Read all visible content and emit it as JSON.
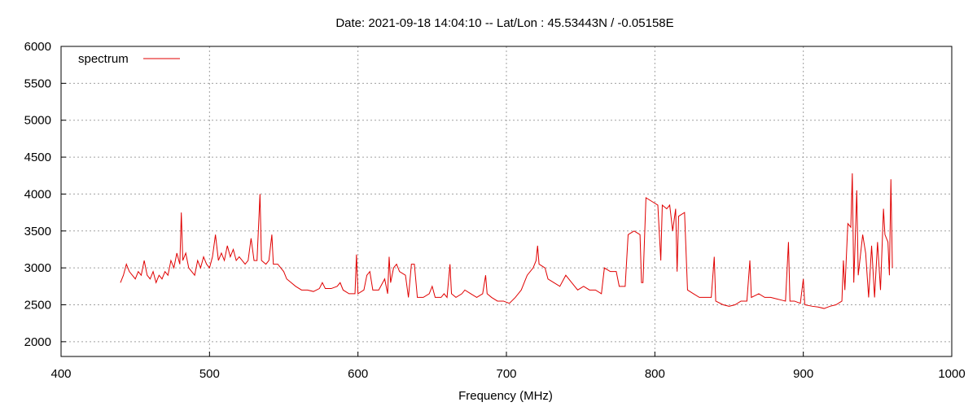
{
  "chart_data": {
    "type": "line",
    "title": "Date: 2021-09-18 14:04:10  --  Lat/Lon : 45.53443N / -0.05158E",
    "x_label": "Frequency (MHz)",
    "x": [
      440,
      442,
      444,
      446,
      448,
      450,
      452,
      454,
      456,
      458,
      460,
      462,
      464,
      466,
      468,
      470,
      472,
      474,
      476,
      478,
      480,
      481,
      482,
      484,
      486,
      488,
      490,
      492,
      494,
      496,
      498,
      500,
      502,
      504,
      506,
      508,
      510,
      512,
      514,
      516,
      518,
      520,
      522,
      524,
      526,
      528,
      530,
      532,
      534,
      535,
      538,
      540,
      542,
      543,
      546,
      548,
      550,
      552,
      555,
      558,
      562,
      566,
      570,
      574,
      576,
      578,
      582,
      586,
      588,
      590,
      594,
      598,
      599,
      600,
      604,
      606,
      608,
      610,
      614,
      618,
      620,
      621,
      622,
      624,
      626,
      628,
      632,
      634,
      636,
      638,
      640,
      644,
      648,
      650,
      652,
      656,
      658,
      660,
      662,
      663,
      666,
      670,
      672,
      676,
      680,
      684,
      686,
      687,
      690,
      694,
      698,
      702,
      706,
      710,
      714,
      718,
      720,
      721,
      722,
      726,
      728,
      732,
      736,
      740,
      744,
      748,
      752,
      756,
      760,
      764,
      766,
      770,
      774,
      776,
      780,
      782,
      786,
      790,
      791,
      792,
      794,
      798,
      802,
      804,
      805,
      808,
      810,
      812,
      814,
      815,
      816,
      820,
      822,
      826,
      830,
      834,
      838,
      840,
      841,
      846,
      850,
      854,
      858,
      862,
      864,
      865,
      870,
      874,
      878,
      882,
      886,
      888,
      890,
      891,
      894,
      898,
      900,
      901,
      906,
      910,
      914,
      918,
      922,
      926,
      927,
      928,
      930,
      932,
      933,
      934,
      935,
      936,
      937,
      940,
      942,
      944,
      946,
      948,
      950,
      952,
      954,
      955,
      957,
      958,
      959,
      960
    ],
    "series": [
      {
        "name": "spectrum",
        "color": "#e00000",
        "values": [
          2800,
          2900,
          3050,
          2950,
          2900,
          2850,
          2950,
          2900,
          3100,
          2900,
          2850,
          2950,
          2800,
          2900,
          2850,
          2950,
          2900,
          3100,
          3000,
          3200,
          3050,
          3750,
          3100,
          3200,
          3000,
          2950,
          2900,
          3100,
          3000,
          3150,
          3050,
          3000,
          3150,
          3450,
          3100,
          3200,
          3100,
          3300,
          3150,
          3250,
          3100,
          3150,
          3100,
          3050,
          3100,
          3400,
          3100,
          3100,
          4000,
          3100,
          3050,
          3100,
          3450,
          3050,
          3050,
          3000,
          2950,
          2850,
          2800,
          2750,
          2700,
          2700,
          2680,
          2720,
          2800,
          2720,
          2720,
          2750,
          2800,
          2700,
          2650,
          2650,
          3180,
          2650,
          2700,
          2900,
          2950,
          2700,
          2700,
          2850,
          2650,
          3150,
          2800,
          3000,
          3050,
          2950,
          2900,
          2600,
          3050,
          3050,
          2600,
          2600,
          2650,
          2750,
          2600,
          2600,
          2650,
          2600,
          3050,
          2650,
          2600,
          2650,
          2700,
          2650,
          2600,
          2650,
          2900,
          2650,
          2600,
          2550,
          2550,
          2520,
          2600,
          2700,
          2900,
          3000,
          3100,
          3300,
          3050,
          3000,
          2850,
          2800,
          2750,
          2900,
          2800,
          2700,
          2750,
          2700,
          2700,
          2650,
          3000,
          2950,
          2950,
          2750,
          2750,
          3450,
          3500,
          3450,
          2800,
          2800,
          3950,
          3900,
          3850,
          3100,
          3850,
          3800,
          3850,
          3500,
          3800,
          2950,
          3700,
          3750,
          2700,
          2650,
          2600,
          2600,
          2600,
          3150,
          2550,
          2500,
          2480,
          2500,
          2550,
          2550,
          3100,
          2600,
          2650,
          2600,
          2600,
          2580,
          2560,
          2550,
          3350,
          2550,
          2550,
          2520,
          2850,
          2500,
          2480,
          2470,
          2450,
          2480,
          2500,
          2550,
          3100,
          2700,
          3600,
          3550,
          4280,
          2800,
          3400,
          4050,
          2900,
          3450,
          3200,
          2600,
          3300,
          2600,
          3350,
          2700,
          3800,
          3450,
          3350,
          2900,
          4200,
          3000
        ]
      }
    ],
    "xlim": [
      400,
      1000
    ],
    "xticks": [
      400,
      500,
      600,
      700,
      800,
      900,
      1000
    ],
    "ylim": [
      1800,
      6000
    ],
    "yticks": [
      2000,
      2500,
      3000,
      3500,
      4000,
      4500,
      5000,
      5500,
      6000
    ],
    "grid": true,
    "legend": "top-left"
  }
}
